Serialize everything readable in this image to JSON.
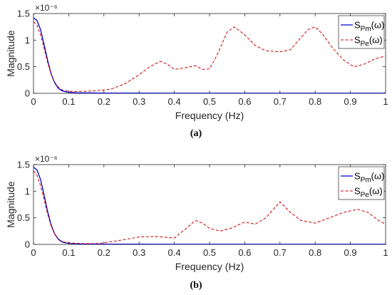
{
  "chart_data": [
    {
      "type": "line",
      "caption": "(a)",
      "xlabel": "Frequency (Hz)",
      "ylabel": "Magnitude",
      "y_exponent": "×10⁻⁶",
      "xlim": [
        0,
        1
      ],
      "ylim": [
        0,
        1.5
      ],
      "xticks": [
        "0",
        "0.1",
        "0.2",
        "0.3",
        "0.4",
        "0.5",
        "0.6",
        "0.7",
        "0.8",
        "0.9",
        "1"
      ],
      "yticks": [
        "0",
        "0.5",
        "1",
        "1.5"
      ],
      "legend_position": "top-right",
      "grid": false,
      "series": [
        {
          "name_base": "S",
          "name_sub": "Pm",
          "name_tail": "(ω)",
          "color": "#0000cc",
          "style": "solid",
          "x": [
            0,
            0.01,
            0.02,
            0.03,
            0.04,
            0.05,
            0.06,
            0.07,
            0.08,
            0.09,
            0.1,
            0.12,
            0.15,
            0.2,
            0.3,
            0.4,
            0.5,
            0.6,
            0.7,
            0.8,
            0.9,
            1.0
          ],
          "y": [
            1.42,
            1.37,
            1.2,
            0.92,
            0.62,
            0.37,
            0.2,
            0.1,
            0.05,
            0.03,
            0.02,
            0.012,
            0.008,
            0.005,
            0.004,
            0.003,
            0.003,
            0.003,
            0.003,
            0.003,
            0.003,
            0.003
          ]
        },
        {
          "name_base": "S",
          "name_sub": "Pe",
          "name_tail": "(ω)",
          "color": "#cc0000",
          "style": "dashed",
          "x": [
            0,
            0.01,
            0.02,
            0.03,
            0.04,
            0.05,
            0.06,
            0.07,
            0.08,
            0.09,
            0.1,
            0.12,
            0.15,
            0.18,
            0.22,
            0.26,
            0.3,
            0.33,
            0.36,
            0.38,
            0.4,
            0.43,
            0.46,
            0.48,
            0.5,
            0.52,
            0.55,
            0.57,
            0.6,
            0.63,
            0.66,
            0.7,
            0.73,
            0.76,
            0.78,
            0.8,
            0.82,
            0.85,
            0.88,
            0.91,
            0.94,
            0.97,
            1.0
          ],
          "y": [
            1.35,
            1.28,
            1.1,
            0.85,
            0.58,
            0.36,
            0.21,
            0.12,
            0.07,
            0.05,
            0.04,
            0.035,
            0.04,
            0.05,
            0.08,
            0.18,
            0.35,
            0.5,
            0.6,
            0.55,
            0.45,
            0.48,
            0.52,
            0.45,
            0.46,
            0.7,
            1.15,
            1.25,
            1.1,
            0.9,
            0.8,
            0.78,
            0.82,
            1.05,
            1.2,
            1.25,
            1.12,
            0.85,
            0.63,
            0.5,
            0.55,
            0.65,
            0.7
          ]
        }
      ]
    },
    {
      "type": "line",
      "caption": "(b)",
      "xlabel": "Frequency (Hz)",
      "ylabel": "Magnitude",
      "y_exponent": "×10⁻⁶",
      "xlim": [
        0,
        1
      ],
      "ylim": [
        0,
        1.5
      ],
      "xticks": [
        "0",
        "0.1",
        "0.2",
        "0.3",
        "0.4",
        "0.5",
        "0.6",
        "0.7",
        "0.8",
        "0.9",
        "1"
      ],
      "yticks": [
        "0",
        "0.5",
        "1",
        "1.5"
      ],
      "legend_position": "top-right",
      "grid": false,
      "series": [
        {
          "name_base": "S",
          "name_sub": "Pm",
          "name_tail": "(ω)",
          "color": "#0000cc",
          "style": "solid",
          "x": [
            0,
            0.01,
            0.02,
            0.03,
            0.04,
            0.05,
            0.06,
            0.07,
            0.08,
            0.09,
            0.1,
            0.12,
            0.15,
            0.2,
            0.3,
            0.4,
            0.5,
            0.6,
            0.7,
            0.8,
            0.9,
            1.0
          ],
          "y": [
            1.45,
            1.4,
            1.22,
            0.93,
            0.62,
            0.37,
            0.2,
            0.1,
            0.05,
            0.03,
            0.02,
            0.012,
            0.008,
            0.005,
            0.004,
            0.003,
            0.003,
            0.003,
            0.003,
            0.003,
            0.003,
            0.003
          ]
        },
        {
          "name_base": "S",
          "name_sub": "Pe",
          "name_tail": "(ω)",
          "color": "#cc0000",
          "style": "dashed",
          "x": [
            0,
            0.01,
            0.02,
            0.03,
            0.04,
            0.05,
            0.06,
            0.07,
            0.08,
            0.09,
            0.1,
            0.12,
            0.15,
            0.18,
            0.2,
            0.25,
            0.3,
            0.35,
            0.38,
            0.4,
            0.43,
            0.46,
            0.48,
            0.5,
            0.53,
            0.56,
            0.6,
            0.63,
            0.66,
            0.7,
            0.73,
            0.76,
            0.8,
            0.84,
            0.88,
            0.92,
            0.95,
            0.98,
            1.0
          ],
          "y": [
            1.38,
            1.3,
            1.1,
            0.85,
            0.57,
            0.35,
            0.2,
            0.11,
            0.06,
            0.04,
            0.03,
            0.02,
            0.015,
            0.015,
            0.03,
            0.08,
            0.14,
            0.15,
            0.13,
            0.12,
            0.28,
            0.45,
            0.4,
            0.3,
            0.25,
            0.3,
            0.42,
            0.38,
            0.5,
            0.8,
            0.6,
            0.45,
            0.4,
            0.5,
            0.6,
            0.66,
            0.6,
            0.45,
            0.38
          ]
        }
      ]
    }
  ]
}
